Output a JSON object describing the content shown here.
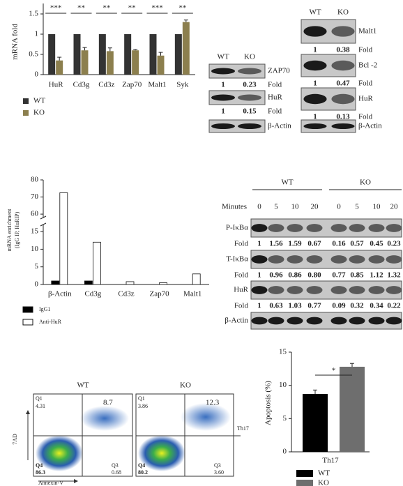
{
  "chart_data": [
    {
      "type": "bar",
      "ylabel": "mRNA fold",
      "categories": [
        "HuR",
        "Cd3g",
        "Cd3z",
        "Zap70",
        "Malt1",
        "Syk"
      ],
      "series": [
        {
          "name": "WT",
          "color": "#333333",
          "values": [
            1,
            1,
            1,
            1,
            1,
            1
          ]
        },
        {
          "name": "KO",
          "color": "#8c7f4e",
          "values": [
            0.35,
            0.6,
            0.58,
            0.6,
            0.47,
            1.3
          ],
          "errors": [
            0.08,
            0.07,
            0.08,
            0.02,
            0.08,
            0.05
          ]
        }
      ],
      "significance": [
        "***",
        "**",
        "**",
        "**",
        "***",
        "**"
      ],
      "ylim": [
        0,
        1.5
      ],
      "yticks": [
        0,
        0.5,
        1,
        1.5
      ]
    },
    {
      "type": "broken_bar",
      "ylabel": [
        "mRNA enrichment",
        "(IgG IP, HuRIP)"
      ],
      "categories": [
        "β-Actin",
        "Cd3g",
        "Cd3z",
        "Zap70",
        "Malt1"
      ],
      "series": [
        {
          "name": "IgG1",
          "color": "#000000",
          "values": [
            1,
            1,
            0,
            0,
            0
          ]
        },
        {
          "name": "Anti-HuR",
          "color": "#ffffff",
          "values": [
            72.5,
            12,
            0.8,
            0.5,
            3
          ]
        }
      ],
      "ylim": [
        0,
        80
      ],
      "ybreak": [
        17,
        58
      ],
      "yticks": [
        0,
        5,
        10,
        15,
        60,
        70,
        80
      ]
    },
    {
      "type": "bar",
      "ylabel": "Apoptosis (%)",
      "xlabel": "Th17",
      "categories": [
        "WT",
        "KO"
      ],
      "values": [
        8.7,
        12.8
      ],
      "errors": [
        0.6,
        0.5
      ],
      "colors": [
        "#000000",
        "#6e6e6e"
      ],
      "significance": "*",
      "ylim": [
        0,
        15
      ],
      "yticks": [
        0,
        5,
        10,
        15
      ]
    }
  ],
  "blots": [
    {
      "columns": [
        "WT",
        "KO"
      ],
      "fold_label": "Fold",
      "rows": [
        {
          "label": "ZAP70",
          "fold": [
            "1",
            "0.23"
          ]
        },
        {
          "label": "HuR",
          "fold": [
            "1",
            "0.15"
          ]
        },
        {
          "label": "β-Actin"
        }
      ]
    },
    {
      "columns": [
        "WT",
        "KO"
      ],
      "fold_label": "Fold",
      "rows": [
        {
          "label": "Malt1",
          "fold": [
            "1",
            "0.38"
          ]
        },
        {
          "label": "Bcl -2",
          "fold": [
            "1",
            "0.47"
          ]
        },
        {
          "label": "HuR",
          "fold": [
            "1",
            "0.13"
          ]
        },
        {
          "label": "β-Actin"
        }
      ]
    },
    {
      "time_label": "Minutes",
      "columns": [
        "WT",
        "KO"
      ],
      "minutes": [
        "0",
        "5",
        "10",
        "20",
        "0",
        "5",
        "10",
        "20"
      ],
      "fold_label": "Fold",
      "rows": [
        {
          "label": "P-IκBα",
          "fold": [
            "1",
            "1.56",
            "1.59",
            "0.67",
            "0.16",
            "0.57",
            "0.45",
            "0.23"
          ]
        },
        {
          "label": "T-IκBα",
          "fold": [
            "1",
            "0.96",
            "0.86",
            "0.80",
            "0.77",
            "0.85",
            "1.12",
            "1.32"
          ]
        },
        {
          "label": "HuR",
          "fold": [
            "1",
            "0.63",
            "1.03",
            "0.77",
            "0.09",
            "0.32",
            "0.34",
            "0.22"
          ]
        },
        {
          "label": "β-Actin"
        }
      ]
    }
  ],
  "flow": {
    "y_label": "7AD",
    "x_label": "Annexin-V",
    "population": "Th17",
    "panels": [
      {
        "title": "WT",
        "q1": "Q1",
        "q1_value": "4.31",
        "q2_value": "8.7",
        "q4": "Q4",
        "q4_value": "86.3",
        "q3": "Q3",
        "q3_value": "0.68"
      },
      {
        "title": "KO",
        "q1": "Q1",
        "q1_value": "3.86",
        "q2_value": "12.3",
        "q4": "Q4",
        "q4_value": "80.2",
        "q3": "Q3",
        "q3_value": "3.60"
      }
    ]
  }
}
